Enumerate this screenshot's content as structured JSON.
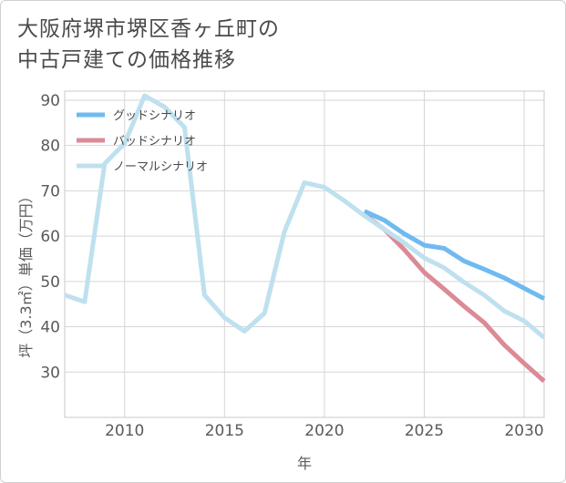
{
  "chart_data": {
    "type": "line",
    "title_lines": [
      "大阪府堺市堺区香ヶ丘町の",
      "中古戸建ての価格推移"
    ],
    "xlabel": "年",
    "ylabel": "坪（3.3㎡）単価（万円）",
    "xlim": [
      2007,
      2031
    ],
    "ylim": [
      20,
      92
    ],
    "x_ticks": [
      2010,
      2015,
      2020,
      2025,
      2030
    ],
    "y_ticks": [
      30,
      40,
      50,
      60,
      70,
      80,
      90
    ],
    "grid": true,
    "legend_position": "top-left",
    "series": [
      {
        "name": "グッドシナリオ",
        "color": "#6fbaf0",
        "x": [
          2022,
          2023,
          2024,
          2025,
          2026,
          2027,
          2028,
          2029,
          2030,
          2031
        ],
        "values": [
          65.5,
          63.5,
          60.5,
          58.0,
          57.3,
          54.5,
          52.7,
          50.8,
          48.5,
          46.2
        ]
      },
      {
        "name": "バッドシナリオ",
        "color": "#db8a96",
        "x": [
          2022,
          2023,
          2024,
          2025,
          2026,
          2027,
          2028,
          2029,
          2030,
          2031
        ],
        "values": [
          64.8,
          61.5,
          57.0,
          52.0,
          48.3,
          44.5,
          40.9,
          36.0,
          31.9,
          28.0
        ]
      },
      {
        "name": "ノーマルシナリオ",
        "color": "#bfe0ee",
        "x": [
          2007,
          2008,
          2009,
          2010,
          2011,
          2012,
          2013,
          2014,
          2015,
          2016,
          2017,
          2018,
          2019,
          2020,
          2021,
          2022,
          2023,
          2024,
          2025,
          2026,
          2027,
          2028,
          2029,
          2030,
          2031
        ],
        "values": [
          47.0,
          45.5,
          76.0,
          80.5,
          91.0,
          88.5,
          84.0,
          47.0,
          42.0,
          39.0,
          43.0,
          61.0,
          71.8,
          70.8,
          67.8,
          64.5,
          61.5,
          58.5,
          55.2,
          53.0,
          49.8,
          47.0,
          43.5,
          41.3,
          37.6
        ]
      }
    ]
  }
}
